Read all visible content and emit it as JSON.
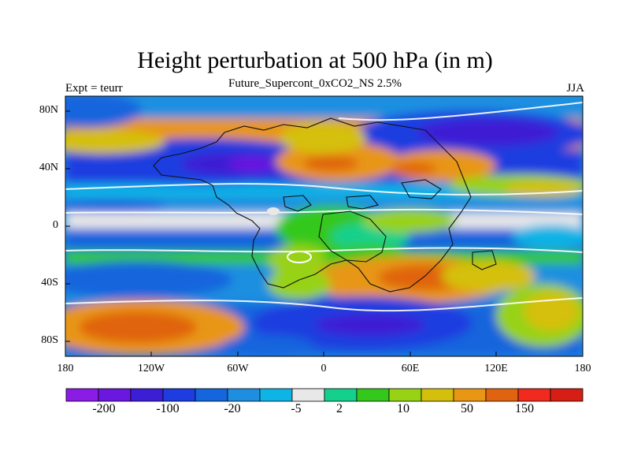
{
  "title": "Height perturbation at 500 hPa (in m)",
  "subtitle": "Future_Supercont_0xCO2_NS 2.5%",
  "left_label": "Expt = teurr",
  "right_label": "JJA",
  "lat_labels": [
    "80N",
    "40N",
    "0",
    "40S",
    "80S"
  ],
  "lon_labels": [
    "180",
    "120W",
    "60W",
    "0",
    "60E",
    "120E",
    "180"
  ],
  "colorbar": {
    "colors": [
      "#8a1ce6",
      "#6a17e0",
      "#3c1fd4",
      "#1f3ce0",
      "#1565dd",
      "#1e8fe0",
      "#0fb4e6",
      "#e8e8e8",
      "#14d08c",
      "#34c81c",
      "#98d214",
      "#d4c00c",
      "#e89614",
      "#e0640f",
      "#f02a1e",
      "#d71e14"
    ],
    "labels": [
      "-200",
      "-100",
      "-20",
      "-5",
      "2",
      "10",
      "50",
      "150"
    ]
  }
}
